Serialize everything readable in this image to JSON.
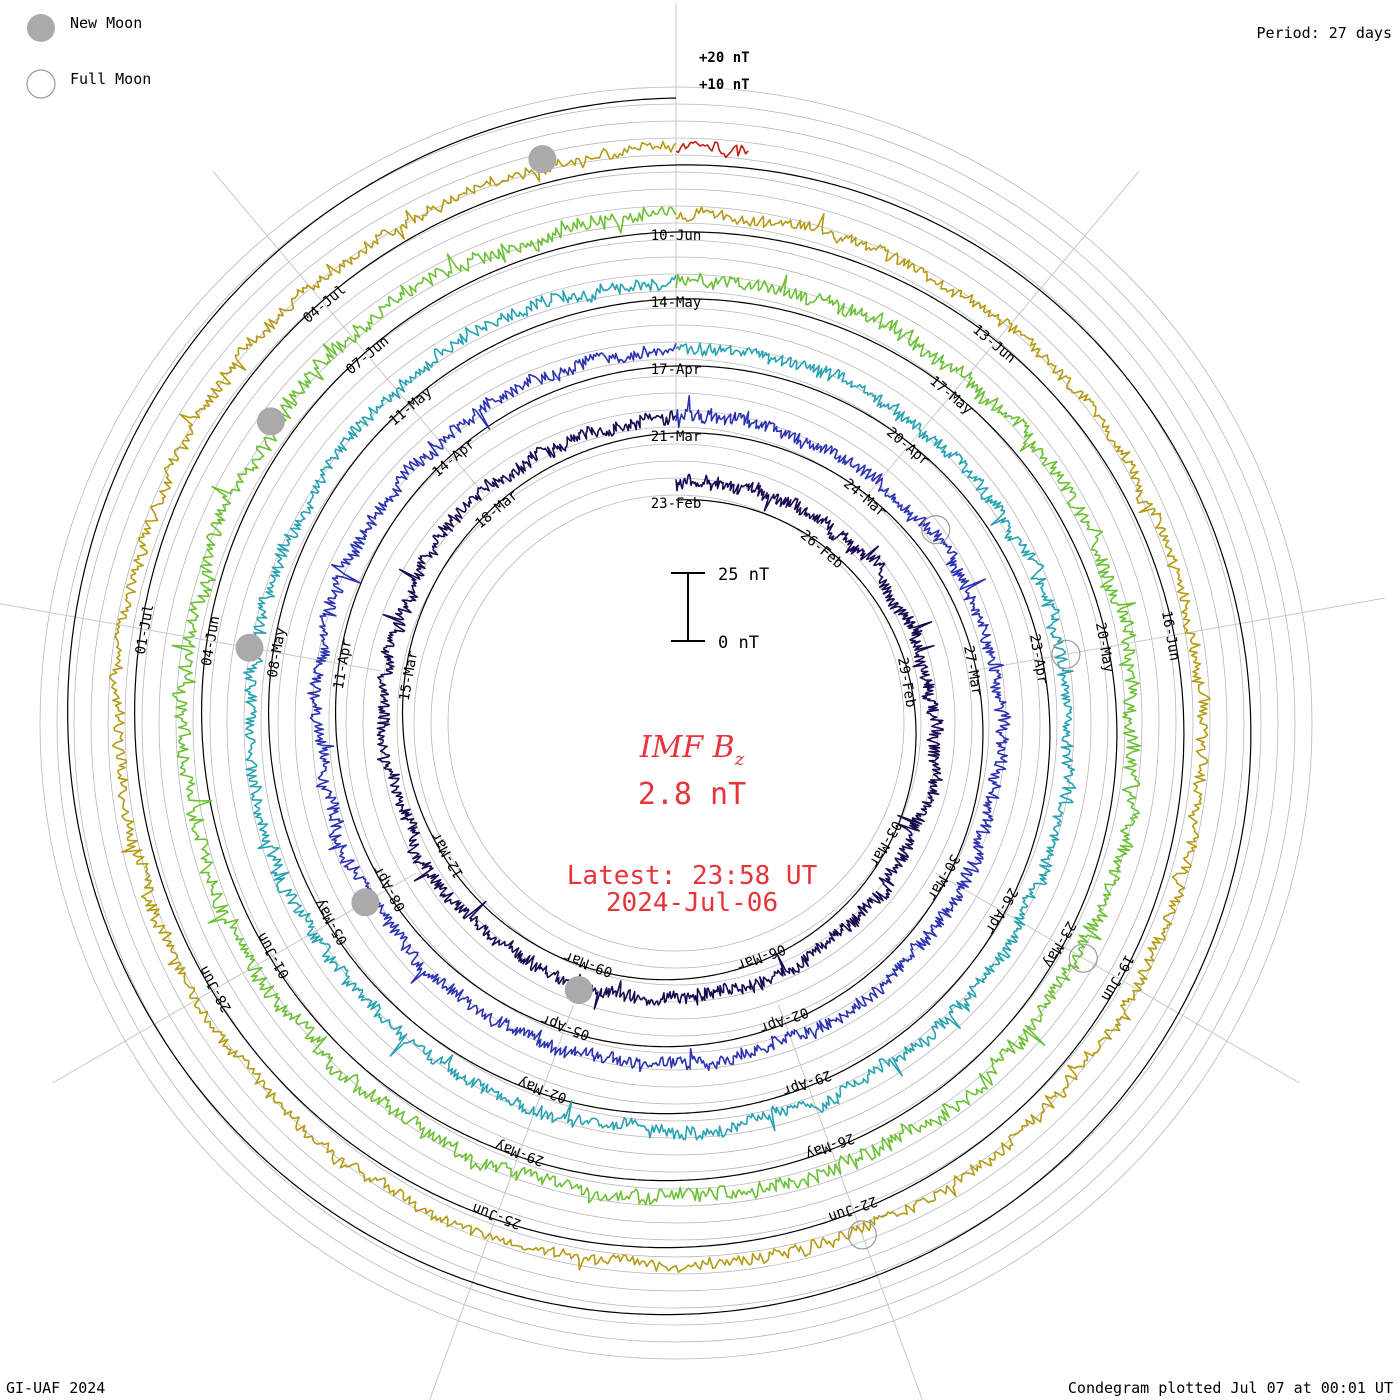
{
  "chart_data": {
    "type": "line",
    "title": "IMF B",
    "title_subscript": "z",
    "current_value": "2.8 nT",
    "latest_label": "Latest: 23:58 UT",
    "latest_date": "2024-Jul-06",
    "period_label": "Period: 27 days",
    "radial_scale_labels": [
      "+20 nT",
      "+10 nT"
    ],
    "scale_bar": {
      "top_label": "25 nT",
      "bottom_label": "0 nT"
    },
    "legend": [
      {
        "label": "New Moon",
        "style": "filled"
      },
      {
        "label": "Full Moon",
        "style": "open"
      }
    ],
    "credit": "GI-UAF 2024",
    "footer": "Condegram plotted Jul 07 at 00:01 UT",
    "rotations": [
      {
        "start": "23-Feb",
        "color": "#1a0a52",
        "amp": 0.55,
        "ticks": [
          "23-Feb",
          "26-Feb",
          "29-Feb",
          "03-Mar",
          "06-Mar",
          "09-Mar",
          "12-Mar",
          "15-Mar",
          "18-Mar"
        ]
      },
      {
        "start": "21-Mar",
        "color": "#2c33b0",
        "amp": 0.55,
        "ticks": [
          "21-Mar",
          "24-Mar",
          "27-Mar",
          "30-Mar",
          "02-Apr",
          "05-Apr",
          "08-Apr",
          "11-Apr",
          "14-Apr"
        ]
      },
      {
        "start": "17-Apr",
        "color": "#27a2b2",
        "amp": 0.55,
        "ticks": [
          "17-Apr",
          "20-Apr",
          "23-Apr",
          "26-Apr",
          "29-Apr",
          "02-May",
          "05-May",
          "08-May",
          "11-May"
        ]
      },
      {
        "start": "14-May",
        "color": "#6cc036",
        "amp": 0.65,
        "ticks": [
          "14-May",
          "17-May",
          "20-May",
          "23-May",
          "26-May",
          "29-May",
          "01-Jun",
          "04-Jun",
          "07-Jun"
        ]
      },
      {
        "start": "10-Jun",
        "color": "#b59a14",
        "amp": 0.5,
        "ticks": [
          "10-Jun",
          "13-Jun",
          "16-Jun",
          "19-Jun",
          "22-Jun",
          "25-Jun",
          "28-Jun",
          "01-Jul",
          "04-Jul"
        ]
      },
      {
        "start": "07-Jul",
        "color": "#c01c12",
        "amp": 0.6,
        "ticks": []
      }
    ],
    "new_moons": [
      "09-Mar",
      "08-Apr",
      "08-May",
      "06-Jun",
      "06-Jul"
    ],
    "full_moons": [
      "25-Mar",
      "23-Apr",
      "23-May",
      "22-Jun"
    ],
    "data_end": "2024-Jul-06 23:58 UT"
  },
  "colors": {
    "title": "#e8333a",
    "grid": "#b8b8b8",
    "spoke": "#c8c8c8"
  }
}
